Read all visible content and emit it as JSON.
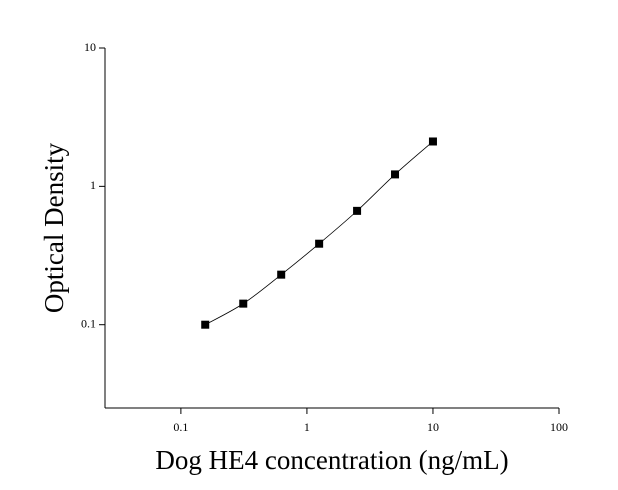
{
  "chart_data": {
    "type": "scatter",
    "x_label": "Dog HE4 concentration (ng/mL)",
    "y_label": "Optical Density",
    "xscale": "log",
    "yscale": "log",
    "xlim": [
      0.025,
      100
    ],
    "ylim": [
      0.025,
      10
    ],
    "xticks": [
      0.1,
      1,
      10,
      100
    ],
    "yticks": [
      0.1,
      1,
      10
    ],
    "series": [
      {
        "color": "#000000",
        "x": [
          0.156,
          0.3125,
          0.625,
          1.25,
          2.5,
          5,
          10
        ],
        "values": [
          0.1,
          0.142,
          0.23,
          0.385,
          0.665,
          1.22,
          2.11
        ]
      }
    ],
    "fit_line": true
  }
}
